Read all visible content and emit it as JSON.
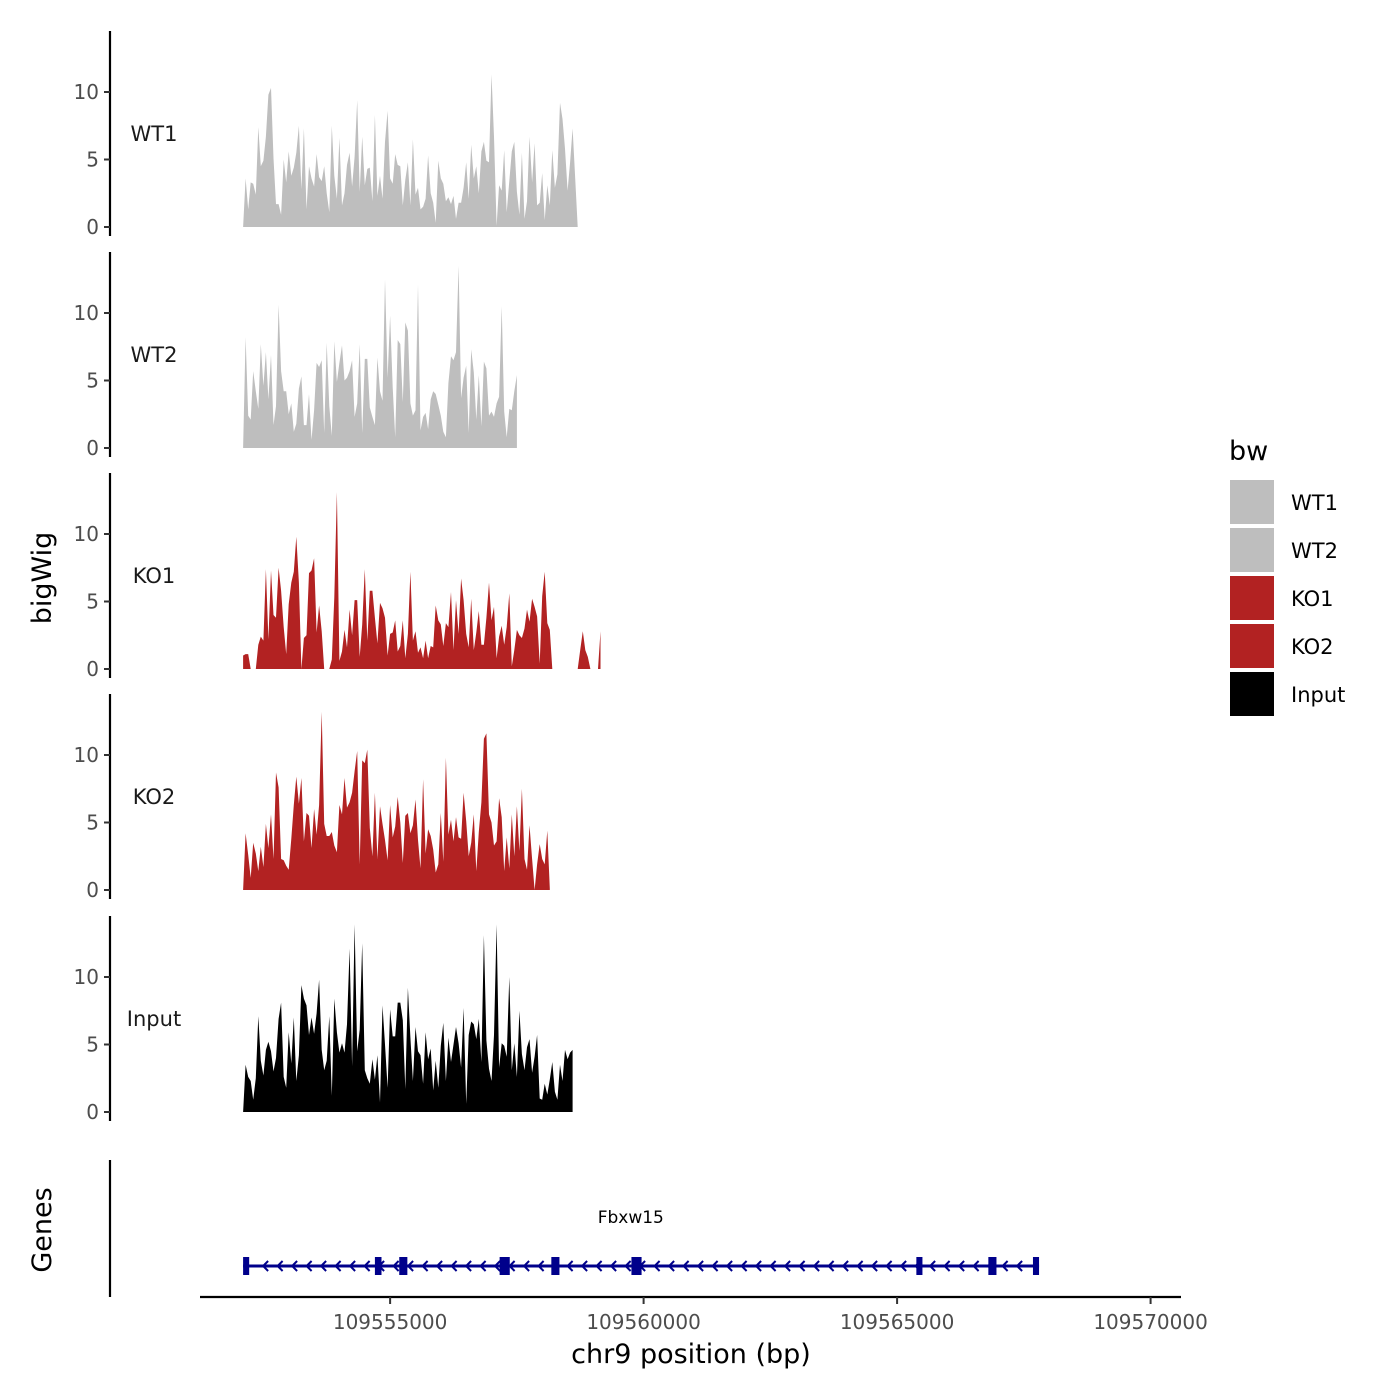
{
  "chart_data": {
    "type": "area",
    "ylabel": "bigWig",
    "xlabel": "chr9 position (bp)",
    "ylim": [
      0,
      14
    ],
    "yticks": [
      0,
      5,
      10
    ],
    "ytick_labels": [
      "0",
      "5",
      "10"
    ],
    "xlim": [
      109551250,
      109570600
    ],
    "xticks": [
      109555000,
      109560000,
      109565000,
      109570000
    ],
    "xtick_labels": [
      "109555000",
      "109560000",
      "109565000",
      "109570000"
    ],
    "x_start": 109552100,
    "x_step": 50,
    "legend": {
      "title": "bw",
      "position": "right",
      "entries": [
        {
          "label": "WT1",
          "color": "#bebebe"
        },
        {
          "label": "WT2",
          "color": "#bebebe"
        },
        {
          "label": "KO1",
          "color": "#b22222"
        },
        {
          "label": "KO2",
          "color": "#b22222"
        },
        {
          "label": "Input",
          "color": "#000000"
        }
      ]
    },
    "series": [
      {
        "name": "WT1",
        "color": "#bebebe",
        "values": [
          0,
          3.6,
          1.3,
          3.3,
          3.2,
          2.4,
          7.4,
          4.5,
          4.9,
          6.7,
          9.8,
          10.3,
          5.1,
          1.7,
          1.7,
          0.9,
          5,
          3.3,
          5.6,
          3.8,
          4.4,
          5.5,
          7.5,
          2.8,
          7.3,
          1.3,
          4.5,
          3.6,
          3,
          5.4,
          3.7,
          3.4,
          4.5,
          2.5,
          1.1,
          7.5,
          3.8,
          2.1,
          6.6,
          1.6,
          2.5,
          4.6,
          5.5,
          3,
          5.2,
          9.4,
          2.6,
          6.7,
          3.1,
          4.3,
          4.4,
          1.9,
          8.3,
          2.3,
          3.8,
          2.1,
          6.3,
          8.6,
          3.6,
          3.2,
          5.4,
          4.6,
          4.5,
          1.6,
          3.5,
          4.8,
          1.6,
          6.5,
          2.4,
          2.9,
          1.3,
          1.5,
          2.1,
          5.3,
          2.5,
          1.8,
          0.3,
          4.9,
          3.6,
          3.2,
          1.9,
          2.2,
          1.7,
          2.3,
          0.6,
          1.8,
          1.8,
          2.9,
          4.8,
          2.1,
          6.1,
          3.6,
          4.5,
          2.5,
          5.6,
          6.3,
          4.9,
          4.8,
          11.3,
          6.7,
          0.1,
          3.1,
          2.7,
          5.7,
          1.1,
          3.4,
          5.6,
          6.3,
          2.6,
          0.9,
          5.5,
          0.6,
          1.9,
          6.7,
          3.3,
          6.2,
          1.6,
          1.8,
          4,
          0.5,
          3.1,
          1.6,
          5.7,
          2.9,
          3.9,
          9.2,
          8,
          5.8,
          2.7,
          4.8,
          7.3,
          3.6,
          0
        ]
      },
      {
        "name": "WT2",
        "color": "#bebebe",
        "values": [
          0,
          8.2,
          2.4,
          2.1,
          5.7,
          4.2,
          2.9,
          7.7,
          4.6,
          7.1,
          3.6,
          6.9,
          1.7,
          3.1,
          10.6,
          5.7,
          4.2,
          4.2,
          2.5,
          3.3,
          1.2,
          1.8,
          4.4,
          5.3,
          1.7,
          1.7,
          4,
          0.6,
          2.8,
          6.3,
          6,
          6.5,
          1.1,
          7.8,
          3.1,
          0.9,
          7.9,
          4.9,
          6.3,
          7.6,
          5,
          5.2,
          5.7,
          6.5,
          2.3,
          3.3,
          7.7,
          1.1,
          6.6,
          6.6,
          3,
          2.3,
          1.7,
          6.7,
          4.2,
          3.5,
          12.5,
          5.2,
          9.8,
          4.5,
          0.8,
          8,
          7.7,
          3.4,
          9.3,
          8.7,
          3.3,
          2.4,
          2.8,
          12.1,
          1.3,
          2.3,
          2.6,
          1.4,
          3.6,
          4.2,
          4,
          3.2,
          2.4,
          1.2,
          0.8,
          4.8,
          6.8,
          6.5,
          7.1,
          13.5,
          3.7,
          5.2,
          6.1,
          1.1,
          7.3,
          5.6,
          2.1,
          5.4,
          1.6,
          6.4,
          5.9,
          2.4,
          2.7,
          2.3,
          3.3,
          3.8,
          10.5,
          2.7,
          0.8,
          2.9,
          2.8,
          4.2,
          5.4
        ]
      },
      {
        "name": "KO1",
        "color": "#b22222",
        "values": [
          1,
          1.1,
          1.1,
          0,
          0,
          0,
          1.8,
          2.4,
          2.1,
          7.4,
          2.2,
          7.3,
          4,
          3.8,
          7.5,
          5.8,
          3.1,
          1.1,
          4.8,
          6.4,
          7.2,
          9.8,
          6.4,
          0,
          2.3,
          2.5,
          7.1,
          7.3,
          8.2,
          2.7,
          4.7,
          2.8,
          0,
          0,
          0,
          0.7,
          5.3,
          13.1,
          0.6,
          1.3,
          2.9,
          1.6,
          4.4,
          2.5,
          5.1,
          5.1,
          0.9,
          3.3,
          7.4,
          2.1,
          5.8,
          5.8,
          3.8,
          1.9,
          4.9,
          4.5,
          3.8,
          1,
          2.6,
          2.7,
          3.6,
          1.3,
          1.7,
          3.6,
          0.8,
          2.6,
          7.2,
          2.1,
          2.8,
          1.2,
          1.6,
          0.8,
          2.1,
          0.8,
          1.7,
          1.6,
          4.7,
          3.6,
          3.3,
          1.7,
          3.4,
          3.1,
          5.7,
          1.4,
          5.1,
          2.6,
          6.7,
          5.1,
          2.6,
          1.6,
          5.2,
          1.4,
          2.7,
          4.3,
          1.8,
          1.8,
          3.8,
          6.4,
          3.6,
          4.6,
          0.8,
          2.4,
          3.2,
          1.8,
          3.1,
          5.6,
          0.2,
          1.4,
          2.9,
          2.5,
          2.3,
          3,
          4.4,
          3.5,
          5.2,
          4.6,
          3.9,
          0.4,
          5.4,
          7.2,
          3.4,
          2.9,
          0,
          0,
          0,
          0,
          0,
          0,
          0,
          0,
          0,
          0,
          0,
          1.4,
          2.8,
          1.4,
          0.9,
          0,
          0,
          0,
          0,
          2.8
        ]
      },
      {
        "name": "KO2",
        "color": "#b22222",
        "values": [
          0,
          4.2,
          2.6,
          0.9,
          3.5,
          2.7,
          1.4,
          3.2,
          1.7,
          4.9,
          3.1,
          5.6,
          2.3,
          8.7,
          7.6,
          2.3,
          2.2,
          1.8,
          1.5,
          3.8,
          6.3,
          8.4,
          6.4,
          8.3,
          3.6,
          5.7,
          5.5,
          3.1,
          6,
          4.1,
          6.3,
          13.2,
          4.9,
          4,
          4,
          4.3,
          3.3,
          2.8,
          6.3,
          5.6,
          8.3,
          6.1,
          6.5,
          7.2,
          8.8,
          10.3,
          1.9,
          9.6,
          9.4,
          10.4,
          4.6,
          2.5,
          7.2,
          2.3,
          6.2,
          4.9,
          3.7,
          2.2,
          6.3,
          3.9,
          4.7,
          6.9,
          5,
          2,
          5.5,
          5.7,
          4.2,
          4.8,
          6.7,
          3.7,
          1.6,
          8.2,
          2.7,
          4.5,
          4,
          3,
          1.3,
          1.9,
          5.7,
          2.1,
          9.8,
          4.1,
          5.2,
          3.6,
          5.4,
          3.9,
          3.8,
          7.2,
          5.1,
          2.5,
          3.5,
          5.6,
          1.4,
          4.3,
          6.5,
          11.2,
          11.6,
          5.6,
          5,
          3.3,
          3.6,
          6.8,
          5.4,
          1.4,
          3.9,
          1.6,
          5.6,
          2.5,
          6.2,
          2.9,
          7.5,
          2.3,
          1.5,
          4.8,
          2.3,
          0,
          1.9,
          3.4,
          2.3,
          1.9,
          4.4,
          0.1
        ]
      },
      {
        "name": "Input",
        "color": "#000000",
        "values": [
          0,
          3.5,
          2.6,
          2.3,
          0.9,
          2.5,
          7.1,
          3.8,
          2.7,
          4.6,
          5.2,
          4.5,
          3,
          4,
          6.9,
          8.1,
          2.6,
          1.8,
          5.9,
          3.6,
          7,
          2.3,
          4.2,
          9.4,
          8.4,
          7.9,
          5.7,
          7,
          5.8,
          7.3,
          9.8,
          4.6,
          3.1,
          3.8,
          7.1,
          1.2,
          8.4,
          5.9,
          4.4,
          5.1,
          4.4,
          6.5,
          12.1,
          3.4,
          13.9,
          4.5,
          6.1,
          12.5,
          3.1,
          2.5,
          2.1,
          3.9,
          2.4,
          4.2,
          0.7,
          7.9,
          5,
          1.8,
          7.6,
          5.6,
          5.6,
          8.1,
          8.1,
          6.8,
          1.7,
          9.2,
          5.5,
          2.3,
          6.3,
          4.5,
          4.2,
          2.1,
          5.9,
          3.9,
          4.7,
          1.6,
          3.8,
          1.8,
          4.9,
          6.6,
          2.3,
          5.5,
          3.7,
          5,
          6.3,
          5.1,
          3.3,
          7.7,
          0.6,
          5.7,
          6.7,
          6.5,
          5.4,
          6.9,
          3.7,
          13.1,
          5.3,
          3.2,
          2.3,
          5.7,
          13.9,
          3.3,
          5.1,
          4.9,
          4.1,
          10,
          3.1,
          5.1,
          2.6,
          7.5,
          4.3,
          3.1,
          4.8,
          5.4,
          2.9,
          4.1,
          5.7,
          1,
          0.9,
          2.1,
          1.3,
          2.4,
          3.7,
          1.5,
          0.9,
          3.5,
          2.3,
          4.6,
          3.9,
          4.4,
          4.6
        ]
      }
    ],
    "gene_track": {
      "label": "Genes",
      "gene": "Fbxw15",
      "strand": "-",
      "start": 109552100,
      "end": 109567800,
      "exons": [
        [
          109552100,
          109552220
        ],
        [
          109554700,
          109554830
        ],
        [
          109555180,
          109555340
        ],
        [
          109557160,
          109557360
        ],
        [
          109558180,
          109558340
        ],
        [
          109559760,
          109559960
        ],
        [
          109565380,
          109565500
        ],
        [
          109566800,
          109566960
        ],
        [
          109567680,
          109567800
        ]
      ],
      "color": "#00008b"
    }
  }
}
